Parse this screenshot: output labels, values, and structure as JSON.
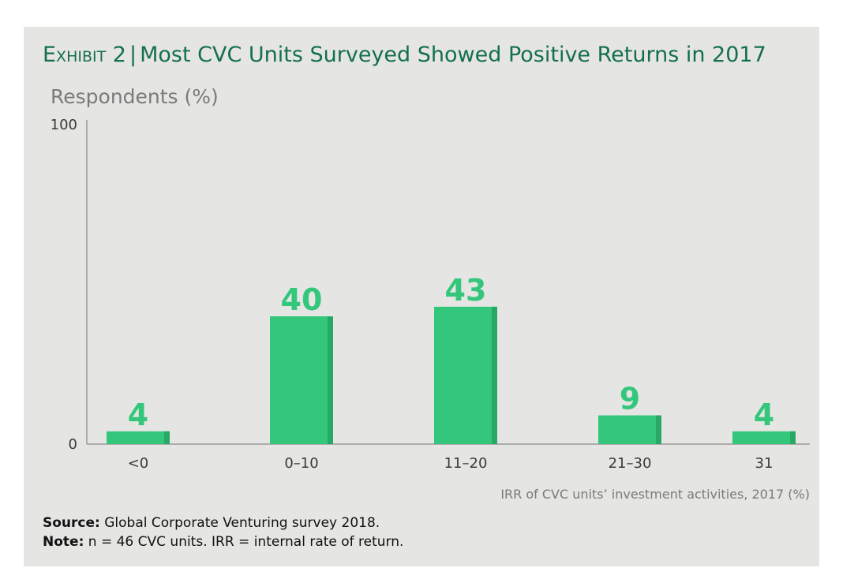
{
  "header": {
    "exhibit": "Exhibit 2",
    "separator": "|",
    "title": "Most CVC Units Surveyed Showed Positive Returns in 2017"
  },
  "colors": {
    "bar": "#34c77c",
    "bar_shade": "#27a865",
    "title": "#14704a",
    "axis": "#9a9a9a",
    "panel": "#e5e5e3"
  },
  "chart_data": {
    "type": "bar",
    "categories": [
      "<0",
      "0–10",
      "11–20",
      "21–30",
      "31"
    ],
    "values": [
      4,
      40,
      43,
      9,
      4
    ],
    "data_labels": [
      "4",
      "40",
      "43",
      "9",
      "4"
    ],
    "ylabel": "Respondents (%)",
    "xlabel": "IRR of CVC units’ investment activities, 2017 (%)",
    "ylim": [
      0,
      100
    ],
    "yticks": [
      0,
      100
    ],
    "grid": false,
    "legend": "none"
  },
  "footer": {
    "source_label": "Source:",
    "source_text": " Global Corporate Venturing survey 2018.",
    "note_label": "Note:",
    "note_text": " n = 46 CVC units. IRR = internal rate of return."
  }
}
